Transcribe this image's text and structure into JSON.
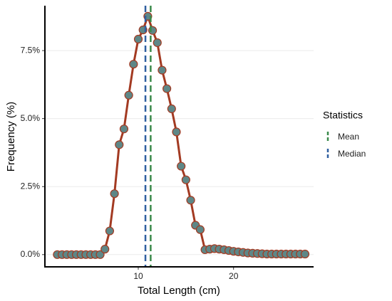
{
  "chart_data": {
    "type": "line",
    "xlabel": "Total Length (cm)",
    "ylabel": "Frequency (%)",
    "legend_title": "Statistics",
    "x": [
      1.5,
      2,
      2.5,
      3,
      3.5,
      4,
      4.5,
      5,
      5.5,
      6,
      6.5,
      7,
      7.5,
      8,
      8.5,
      9,
      9.5,
      10,
      10.5,
      11,
      11.5,
      12,
      12.5,
      13,
      13.5,
      14,
      14.5,
      15,
      15.5,
      16,
      16.5,
      17,
      17.5,
      18,
      18.5,
      19,
      19.5,
      20,
      20.5,
      21,
      21.5,
      22,
      22.5,
      23,
      23.5,
      24,
      24.5,
      25,
      25.5,
      26,
      26.5,
      27,
      27.5
    ],
    "series": [
      {
        "values": [
          0,
          0,
          0,
          0,
          0,
          0,
          0,
          0,
          0,
          0,
          0.2,
          0.87,
          2.24,
          4.04,
          4.62,
          5.86,
          7.0,
          7.92,
          8.26,
          8.76,
          8.24,
          7.79,
          6.78,
          6.1,
          5.36,
          4.51,
          3.25,
          2.75,
          2.0,
          1.08,
          0.92,
          0.18,
          0.2,
          0.22,
          0.2,
          0.18,
          0.15,
          0.12,
          0.1,
          0.08,
          0.06,
          0.05,
          0.04,
          0.03,
          0.02,
          0.02,
          0.02,
          0.02,
          0.02,
          0.02,
          0.02,
          0.02,
          0.02
        ],
        "color": "#a33a22",
        "marker_color": "#5e8787"
      }
    ],
    "vlines": [
      {
        "name": "Mean",
        "value": 11.3,
        "color": "#3a8a4a"
      },
      {
        "name": "Median",
        "value": 10.75,
        "color": "#2f5fa0"
      }
    ],
    "xlim": [
      0.2,
      28.4
    ],
    "xticks": [
      10,
      20
    ],
    "ylim": [
      -0.45,
      9.15
    ],
    "yticks": [
      {
        "value": 0,
        "label": "0.0%"
      },
      {
        "value": 2.5,
        "label": "2.5%"
      },
      {
        "value": 5,
        "label": "5.0%"
      },
      {
        "value": 7.5,
        "label": "7.5%"
      }
    ],
    "grid": true
  }
}
